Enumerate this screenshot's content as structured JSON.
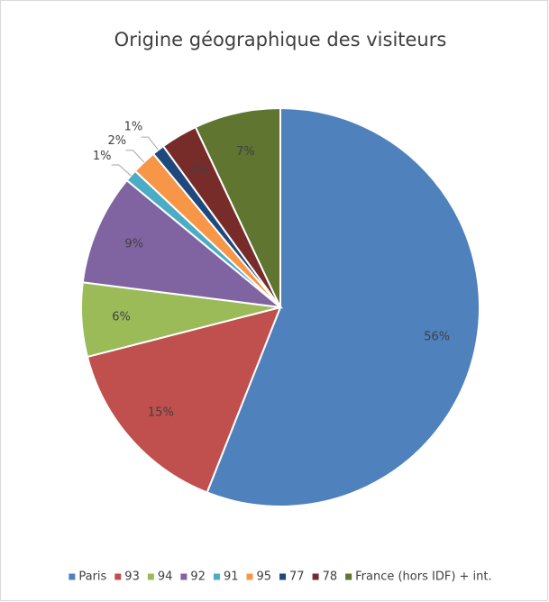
{
  "chart_data": {
    "type": "pie",
    "title": "Origine géographique des visiteurs",
    "categories": [
      "Paris",
      "93",
      "94",
      "92",
      "91",
      "95",
      "77",
      "78",
      "France (hors IDF) + int."
    ],
    "values": [
      56,
      15,
      6,
      9,
      1,
      2,
      1,
      3,
      7
    ],
    "value_labels": [
      "56%",
      "15%",
      "6%",
      "9%",
      "1%",
      "2%",
      "1%",
      "3%",
      "7%"
    ],
    "colors": [
      "#4f81bd",
      "#c0504d",
      "#9bbb59",
      "#8064a2",
      "#4bacc6",
      "#f79646",
      "#1f497d",
      "#772c2a",
      "#5f7530"
    ],
    "legend": "bottom"
  }
}
